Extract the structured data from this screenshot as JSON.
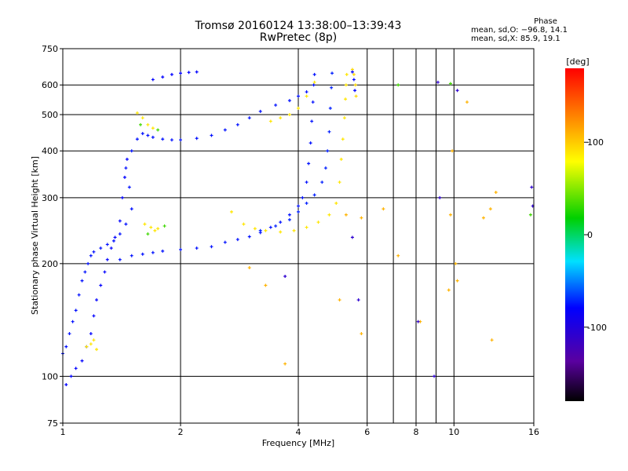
{
  "header": {
    "title_line1": "Tromsø 20160124 13:38:00–13:39:43",
    "title_line2": "RwPretec (8p)"
  },
  "phase_info": {
    "heading": "Phase",
    "line_o": "mean, sd,O: −96.8, 14.1",
    "line_x": "mean, sd,X:  85.9, 19.1"
  },
  "chart_data": {
    "type": "scatter",
    "xlabel": "Frequency [MHz]",
    "ylabel": "Stationary phase Virtual Height [km]",
    "x_scale": "log",
    "y_scale": "log",
    "xlim": [
      1,
      16
    ],
    "ylim": [
      75,
      750
    ],
    "x_ticks": [
      {
        "value": 1,
        "label": "1"
      },
      {
        "value": 2,
        "label": "2"
      },
      {
        "value": 4,
        "label": "4"
      },
      {
        "value": 6,
        "label": "6"
      },
      {
        "value": 8,
        "label": "8"
      },
      {
        "value": 10,
        "label": "10"
      },
      {
        "value": 16,
        "label": "16"
      }
    ],
    "x_minor": [
      7,
      9
    ],
    "y_ticks": [
      {
        "value": 75,
        "label": "75"
      },
      {
        "value": 100,
        "label": "100"
      },
      {
        "value": 200,
        "label": "200"
      },
      {
        "value": 300,
        "label": "300"
      },
      {
        "value": 400,
        "label": "400"
      },
      {
        "value": 500,
        "label": "500"
      },
      {
        "value": 600,
        "label": "600"
      },
      {
        "value": 750,
        "label": "750"
      }
    ],
    "grid": true,
    "colorbar": {
      "label": "[deg]",
      "range": [
        -180,
        180
      ],
      "ticks": [
        {
          "value": 100,
          "label": "100"
        },
        {
          "value": 0,
          "label": "0"
        },
        {
          "value": -100,
          "label": "-100"
        }
      ]
    },
    "series": [
      {
        "phase": -95,
        "points": [
          [
            1.0,
            115
          ],
          [
            1.02,
            120
          ],
          [
            1.04,
            130
          ],
          [
            1.06,
            140
          ],
          [
            1.08,
            150
          ],
          [
            1.1,
            165
          ],
          [
            1.12,
            180
          ],
          [
            1.14,
            190
          ],
          [
            1.16,
            200
          ],
          [
            1.18,
            210
          ],
          [
            1.2,
            215
          ],
          [
            1.25,
            220
          ],
          [
            1.3,
            225
          ],
          [
            1.35,
            230
          ],
          [
            1.4,
            240
          ],
          [
            1.45,
            255
          ],
          [
            1.5,
            280
          ],
          [
            1.48,
            320
          ],
          [
            1.45,
            360
          ],
          [
            1.5,
            400
          ],
          [
            1.55,
            430
          ],
          [
            1.6,
            445
          ],
          [
            1.65,
            440
          ],
          [
            1.7,
            435
          ],
          [
            1.8,
            430
          ],
          [
            1.9,
            428
          ],
          [
            2.0,
            428
          ],
          [
            2.2,
            432
          ],
          [
            2.4,
            440
          ],
          [
            2.6,
            455
          ],
          [
            2.8,
            470
          ],
          [
            3.0,
            490
          ],
          [
            3.2,
            510
          ],
          [
            3.5,
            530
          ],
          [
            3.8,
            545
          ],
          [
            4.0,
            560
          ],
          [
            4.2,
            575
          ]
        ]
      },
      {
        "phase": -95,
        "points": [
          [
            1.4,
            205
          ],
          [
            1.5,
            210
          ],
          [
            1.6,
            212
          ],
          [
            1.7,
            214
          ],
          [
            1.8,
            216
          ],
          [
            2.0,
            218
          ],
          [
            2.2,
            220
          ],
          [
            2.4,
            222
          ],
          [
            2.6,
            228
          ],
          [
            2.8,
            232
          ],
          [
            3.0,
            236
          ],
          [
            3.2,
            242
          ],
          [
            3.4,
            250
          ],
          [
            3.6,
            258
          ],
          [
            3.8,
            270
          ],
          [
            4.0,
            285
          ],
          [
            4.1,
            300
          ],
          [
            4.2,
            330
          ],
          [
            4.25,
            370
          ],
          [
            4.3,
            420
          ],
          [
            4.33,
            480
          ],
          [
            4.36,
            540
          ],
          [
            4.38,
            600
          ],
          [
            4.4,
            640
          ]
        ]
      },
      {
        "phase": -100,
        "points": [
          [
            1.7,
            620
          ],
          [
            1.8,
            630
          ],
          [
            1.9,
            640
          ],
          [
            2.0,
            645
          ],
          [
            2.1,
            648
          ],
          [
            2.2,
            650
          ]
        ]
      },
      {
        "phase": -90,
        "points": [
          [
            3.2,
            245
          ],
          [
            3.5,
            252
          ],
          [
            3.8,
            262
          ],
          [
            4.0,
            275
          ],
          [
            4.2,
            290
          ],
          [
            4.4,
            305
          ],
          [
            4.6,
            330
          ],
          [
            4.7,
            360
          ],
          [
            4.75,
            400
          ],
          [
            4.8,
            450
          ],
          [
            4.83,
            520
          ],
          [
            4.86,
            590
          ],
          [
            4.88,
            645
          ]
        ]
      },
      {
        "phase": 90,
        "points": [
          [
            2.7,
            275
          ],
          [
            2.9,
            255
          ],
          [
            3.1,
            248
          ],
          [
            3.3,
            245
          ],
          [
            3.6,
            243
          ],
          [
            3.9,
            245
          ],
          [
            4.2,
            250
          ],
          [
            4.5,
            258
          ],
          [
            4.8,
            270
          ],
          [
            5.0,
            290
          ],
          [
            5.1,
            330
          ],
          [
            5.15,
            380
          ],
          [
            5.2,
            430
          ],
          [
            5.25,
            490
          ],
          [
            5.28,
            550
          ],
          [
            5.3,
            600
          ],
          [
            5.32,
            640
          ]
        ]
      },
      {
        "phase": 90,
        "points": [
          [
            3.4,
            480
          ],
          [
            3.6,
            490
          ],
          [
            3.8,
            500
          ],
          [
            4.0,
            520
          ],
          [
            4.2,
            560
          ],
          [
            4.4,
            610
          ]
        ]
      },
      {
        "phase": 95,
        "points": [
          [
            5.5,
            660
          ],
          [
            5.55,
            640
          ],
          [
            5.6,
            600
          ],
          [
            5.62,
            560
          ]
        ]
      },
      {
        "phase": -100,
        "points": [
          [
            5.5,
            650
          ],
          [
            5.55,
            620
          ],
          [
            5.58,
            580
          ]
        ]
      },
      {
        "phase": -100,
        "points": [
          [
            1.02,
            95
          ],
          [
            1.05,
            100
          ],
          [
            1.08,
            105
          ],
          [
            1.12,
            110
          ],
          [
            1.15,
            120
          ],
          [
            1.18,
            130
          ],
          [
            1.2,
            145
          ],
          [
            1.22,
            160
          ],
          [
            1.25,
            175
          ],
          [
            1.28,
            190
          ],
          [
            1.3,
            205
          ],
          [
            1.33,
            220
          ],
          [
            1.36,
            235
          ],
          [
            1.4,
            260
          ],
          [
            1.42,
            300
          ],
          [
            1.44,
            340
          ],
          [
            1.46,
            380
          ]
        ]
      },
      {
        "phase": 90,
        "points": [
          [
            1.15,
            120
          ],
          [
            1.18,
            122
          ],
          [
            1.2,
            125
          ],
          [
            1.22,
            118
          ],
          [
            1.62,
            255
          ],
          [
            1.68,
            250
          ],
          [
            1.72,
            245
          ],
          [
            1.75,
            248
          ],
          [
            1.6,
            490
          ],
          [
            1.65,
            470
          ],
          [
            1.7,
            460
          ],
          [
            1.55,
            505
          ]
        ]
      },
      {
        "phase": 30,
        "points": [
          [
            1.58,
            470
          ],
          [
            1.75,
            455
          ],
          [
            1.65,
            240
          ],
          [
            1.82,
            252
          ]
        ]
      },
      {
        "phase": 110,
        "points": [
          [
            6.6,
            280
          ],
          [
            7.2,
            210
          ],
          [
            8.2,
            140
          ],
          [
            9.8,
            270
          ],
          [
            10.1,
            200
          ],
          [
            10.2,
            180
          ],
          [
            12.4,
            280
          ],
          [
            12.5,
            125
          ],
          [
            5.1,
            160
          ],
          [
            5.3,
            270
          ],
          [
            3.3,
            175
          ],
          [
            3.7,
            108
          ],
          [
            5.8,
            130
          ],
          [
            3.0,
            195
          ],
          [
            11.9,
            265
          ],
          [
            10.8,
            540
          ],
          [
            9.9,
            400
          ],
          [
            12.8,
            310
          ],
          [
            9.7,
            170
          ],
          [
            5.8,
            265
          ]
        ]
      },
      {
        "phase": -120,
        "points": [
          [
            9.1,
            610
          ],
          [
            8.9,
            100
          ],
          [
            8.1,
            140
          ],
          [
            3.7,
            185
          ],
          [
            5.5,
            235
          ],
          [
            5.7,
            160
          ],
          [
            9.2,
            300
          ],
          [
            15.8,
            320
          ],
          [
            15.9,
            285
          ],
          [
            10.2,
            580
          ]
        ]
      },
      {
        "phase": 30,
        "points": [
          [
            7.2,
            600
          ],
          [
            15.7,
            270
          ],
          [
            9.8,
            605
          ]
        ]
      }
    ]
  }
}
